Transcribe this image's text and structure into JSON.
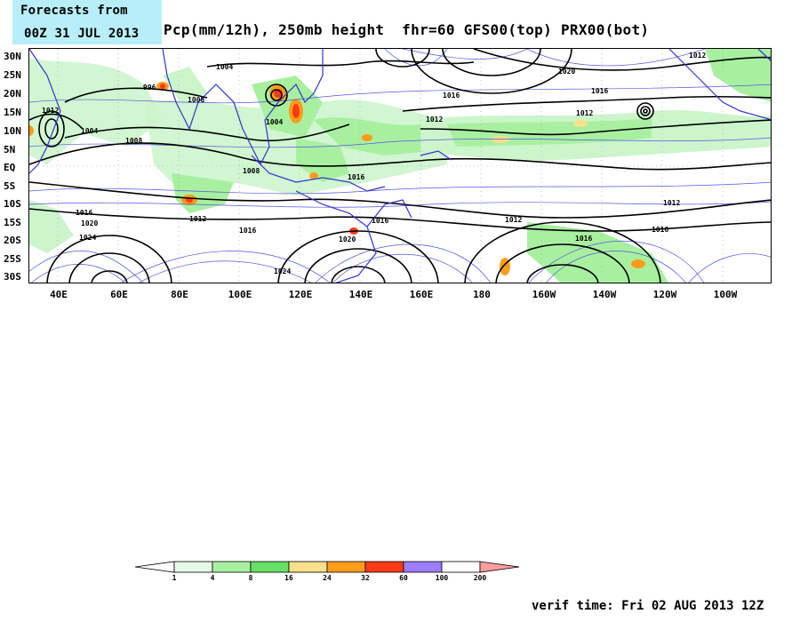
{
  "title": {
    "line1": "Forecasts from",
    "line2": "00Z 31 JUL 2013"
  },
  "header": "Pcp(mm/12h), 250mb height  fhr=60 GFS00(top) PRX00(bot)",
  "verif_time": "verif time: Fri 02 AUG 2013 12Z",
  "map": {
    "lat_labels": [
      "30N",
      "25N",
      "20N",
      "15N",
      "10N",
      "5N",
      "EQ",
      "5S",
      "10S",
      "15S",
      "20S",
      "25S",
      "30S"
    ],
    "lon_labels": [
      "40E",
      "60E",
      "80E",
      "100E",
      "120E",
      "140E",
      "160E",
      "180",
      "160W",
      "140W",
      "120W",
      "100W"
    ],
    "contour_labels": [
      "1004",
      "996",
      "1008",
      "1012",
      "1004",
      "1004",
      "1008",
      "1008",
      "1016",
      "1020",
      "1024",
      "1016",
      "1020",
      "1012",
      "1016",
      "1016",
      "1012",
      "1012",
      "1016",
      "1016",
      "1012",
      "1012",
      "1016",
      "1020",
      "1024",
      "1016",
      "1012"
    ],
    "colors": {
      "land_outline": "#3333cc",
      "isobar": "#000000",
      "thin_contour": "#5555dd",
      "precip_light": "#ccf5cc"
    }
  },
  "legend": {
    "values": [
      "1",
      "4",
      "8",
      "16",
      "24",
      "32",
      "60",
      "100",
      "200"
    ],
    "colors": [
      "#e6fbe6",
      "#a8f0a0",
      "#66e066",
      "#fae08a",
      "#ff9d1a",
      "#ff3a14",
      "#9d7dff",
      "#ffffff",
      "#ff9d9d"
    ]
  }
}
